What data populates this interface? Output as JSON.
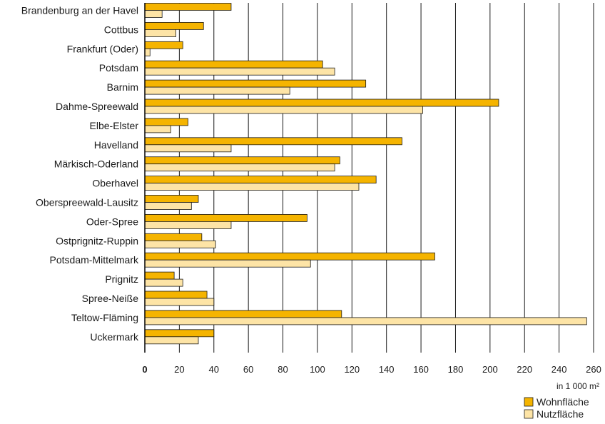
{
  "chart_data": {
    "type": "bar",
    "orientation": "horizontal",
    "categories": [
      "Brandenburg an der Havel",
      "Cottbus",
      "Frankfurt (Oder)",
      "Potsdam",
      "Barnim",
      "Dahme-Spreewald",
      "Elbe-Elster",
      "Havelland",
      "Märkisch-Oderland",
      "Oberhavel",
      "Oberspreewald-Lausitz",
      "Oder-Spree",
      "Ostprignitz-Ruppin",
      "Potsdam-Mittelmark",
      "Prignitz",
      "Spree-Neiße",
      "Teltow-Fläming",
      "Uckermark"
    ],
    "series": [
      {
        "name": "Wohnfläche",
        "color": "#f5b400",
        "values": [
          50,
          34,
          22,
          103,
          128,
          205,
          25,
          149,
          113,
          134,
          31,
          94,
          33,
          168,
          17,
          36,
          114,
          40
        ]
      },
      {
        "name": "Nutzfläche",
        "color": "#fde4a6",
        "values": [
          10,
          18,
          3,
          110,
          84,
          161,
          15,
          50,
          110,
          124,
          27,
          50,
          41,
          96,
          22,
          40,
          256,
          31
        ]
      }
    ],
    "xlim": [
      0,
      260
    ],
    "xticks": [
      "0",
      "20",
      "40",
      "60",
      "80",
      "100",
      "120",
      "140",
      "160",
      "180",
      "200",
      "220",
      "240",
      "260"
    ],
    "xunit": "in 1 000 m²",
    "grid": "vertical",
    "legend_position": "bottom-right"
  }
}
